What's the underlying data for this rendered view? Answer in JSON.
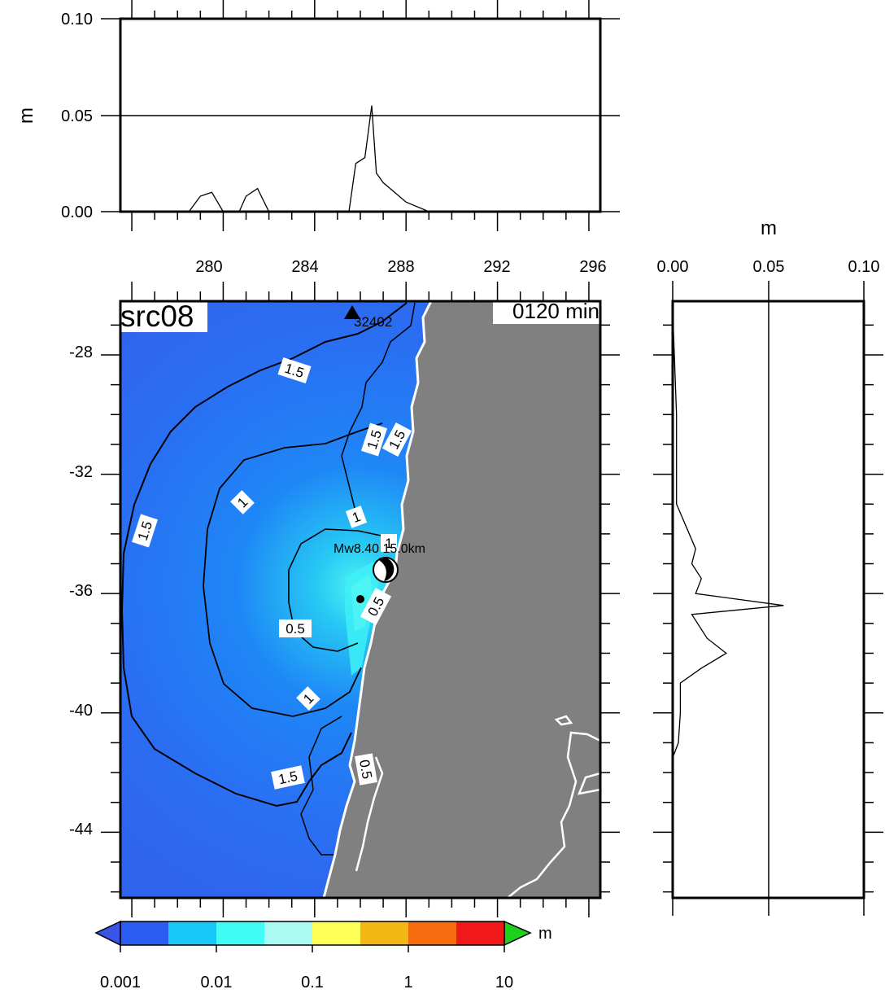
{
  "panel_title": "src08",
  "time_label": "0120 min",
  "unit_label": "m",
  "station": {
    "name": "32402"
  },
  "event_label": "Mw8.40 15.0km",
  "colors": {
    "ocean_deep": "#2a6ff3",
    "ocean_mid": "#1e86f6",
    "ocean_hot": "#35e9f6",
    "land": "#808080",
    "coast": "#ffffff",
    "contour": "#000000",
    "over_arrow": "#1fd11f",
    "under_arrow": "#3a55e6"
  },
  "colorbar": {
    "labels": [
      "0.001",
      "0.01",
      "0.1",
      "1",
      "10"
    ],
    "colors": [
      "#2a5cf2",
      "#18c8f8",
      "#40fcf4",
      "#aafaf4",
      "#ffff55",
      "#f4b716",
      "#f56c0f",
      "#f01818"
    ],
    "unit": "m"
  },
  "top_panel": {
    "y_ticks": [
      "0.00",
      "0.05",
      "0.10"
    ],
    "y_label": "m",
    "x_ticks": [
      "280",
      "284",
      "288",
      "292",
      "296"
    ]
  },
  "right_panel": {
    "x_ticks": [
      "0.00",
      "0.05",
      "0.10"
    ],
    "x_label": "m"
  },
  "map": {
    "y_ticks": [
      "-28",
      "-32",
      "-36",
      "-40",
      "-44"
    ],
    "contour_labels": [
      "1.5",
      "1.5",
      "1.5",
      "1.5",
      "1",
      "1",
      "1",
      "0.5",
      "0.5",
      "1",
      "1.5",
      "0.5"
    ]
  },
  "chart_data": [
    {
      "type": "line",
      "description": "Maximum wave amplitude profile along longitude",
      "x": [
        276.0,
        278.5,
        279.0,
        279.5,
        280.0,
        280.7,
        281.0,
        281.5,
        282.0,
        285.5,
        285.8,
        286.2,
        286.5,
        286.7,
        287.0,
        287.5,
        288.0,
        289.0,
        296.0
      ],
      "y": [
        0.0,
        0.0,
        0.008,
        0.01,
        0.0,
        0.0,
        0.008,
        0.012,
        0.0,
        0.0,
        0.025,
        0.028,
        0.055,
        0.02,
        0.015,
        0.01,
        0.005,
        0.0,
        0.0
      ],
      "xlim": [
        275.5,
        296.5
      ],
      "ylim": [
        0,
        0.1
      ],
      "ylabel": "m"
    },
    {
      "type": "line",
      "description": "Maximum wave amplitude profile along latitude",
      "lat": [
        -26.5,
        -30.0,
        -33.0,
        -34.5,
        -35.0,
        -35.5,
        -36.0,
        -36.4,
        -36.7,
        -37.5,
        -38.0,
        -38.5,
        -39.0,
        -40.0,
        -41.0,
        -41.5,
        -46.0
      ],
      "amp": [
        0.0,
        0.002,
        0.002,
        0.012,
        0.01,
        0.015,
        0.012,
        0.058,
        0.01,
        0.018,
        0.028,
        0.015,
        0.004,
        0.004,
        0.003,
        0.0,
        0.0
      ],
      "xlim": [
        0,
        0.1
      ],
      "ylim": [
        -46.2,
        -26.2
      ],
      "xlabel": "m"
    }
  ]
}
